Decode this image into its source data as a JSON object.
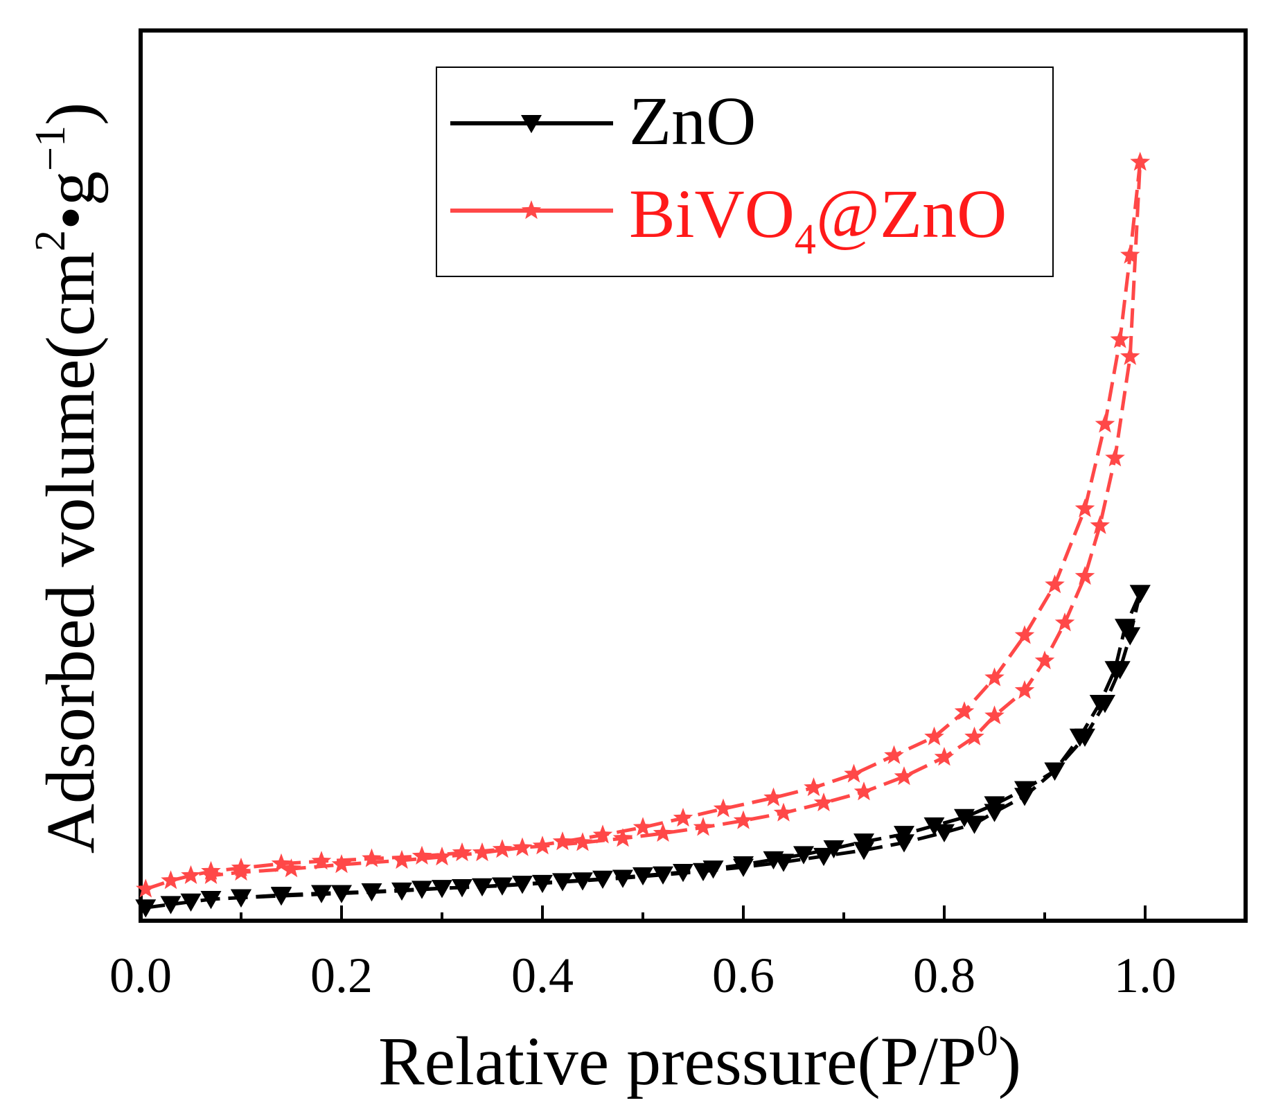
{
  "chart_data": {
    "type": "line",
    "title": "",
    "xlabel": {
      "main": "Relative pressure(P/P",
      "sup": "0",
      "tail": ")"
    },
    "ylabel": {
      "pre": "Adsorbed volume(cm",
      "sup1": "2",
      "mid": "•g",
      "sup2": "−1",
      "tail": ")"
    },
    "xlim": [
      0.0,
      1.1
    ],
    "ylim": [
      0,
      100
    ],
    "xticks": [
      0.0,
      0.2,
      0.4,
      0.6,
      0.8,
      1.0
    ],
    "xtick_labels": [
      "0.0",
      "0.2",
      "0.4",
      "0.6",
      "0.8",
      "1.0"
    ],
    "y_ticks_labeled": false,
    "grid": false,
    "legend_position": "top-right",
    "series": [
      {
        "name": "ZnO",
        "label_main": "ZnO",
        "label_sub": "",
        "label_tail": "",
        "color": "#000000",
        "marker": "triangle-down",
        "adsorption": {
          "x": [
            0.005,
            0.03,
            0.05,
            0.07,
            0.1,
            0.14,
            0.18,
            0.23,
            0.28,
            0.32,
            0.36,
            0.4,
            0.44,
            0.48,
            0.52,
            0.56,
            0.6,
            0.64,
            0.68,
            0.72,
            0.76,
            0.8,
            0.83,
            0.85,
            0.88,
            0.91,
            0.935,
            0.955,
            0.97,
            0.98,
            0.995
          ],
          "y": [
            0.8,
            1.2,
            1.5,
            1.8,
            2.0,
            2.3,
            2.5,
            2.7,
            3.0,
            3.2,
            3.4,
            3.7,
            4.0,
            4.3,
            4.7,
            5.1,
            5.6,
            6.2,
            6.9,
            7.6,
            8.5,
            9.7,
            10.7,
            12.1,
            14.0,
            17.0,
            21.0,
            25.0,
            29.0,
            34.0,
            38.0
          ]
        },
        "desorption": {
          "x": [
            0.995,
            0.985,
            0.975,
            0.96,
            0.94,
            0.91,
            0.88,
            0.85,
            0.82,
            0.79,
            0.76,
            0.72,
            0.69,
            0.66,
            0.63,
            0.6,
            0.57,
            0.54,
            0.5,
            0.46,
            0.42,
            0.38,
            0.34,
            0.3,
            0.26,
            0.2,
            0.14,
            0.1
          ],
          "y": [
            38.0,
            33.0,
            29.0,
            25.0,
            21.0,
            17.0,
            14.8,
            13.0,
            11.5,
            10.5,
            9.5,
            8.6,
            7.8,
            7.1,
            6.5,
            5.9,
            5.4,
            5.0,
            4.6,
            4.2,
            3.9,
            3.6,
            3.3,
            3.1,
            2.8,
            2.5,
            2.2,
            2.0
          ]
        }
      },
      {
        "name": "BiVO4@ZnO",
        "label_main": "BiVO",
        "label_sub": "4",
        "label_tail": "@ZnO",
        "color": "#ff4848",
        "marker": "star",
        "adsorption": {
          "x": [
            0.005,
            0.03,
            0.05,
            0.07,
            0.1,
            0.14,
            0.18,
            0.23,
            0.28,
            0.32,
            0.36,
            0.4,
            0.44,
            0.48,
            0.52,
            0.56,
            0.6,
            0.64,
            0.68,
            0.72,
            0.76,
            0.8,
            0.83,
            0.85,
            0.88,
            0.9,
            0.92,
            0.94,
            0.955,
            0.97,
            0.985,
            0.995
          ],
          "y": [
            3.0,
            4.0,
            4.6,
            5.1,
            5.5,
            6.0,
            6.3,
            6.6,
            6.9,
            7.3,
            7.7,
            8.1,
            8.5,
            9.0,
            9.6,
            10.3,
            11.1,
            12.0,
            13.2,
            14.5,
            16.3,
            18.6,
            21.0,
            23.5,
            26.5,
            30.0,
            34.5,
            40.0,
            46.0,
            54.0,
            66.0,
            89.0
          ]
        },
        "desorption": {
          "x": [
            0.995,
            0.985,
            0.975,
            0.96,
            0.94,
            0.91,
            0.88,
            0.85,
            0.82,
            0.79,
            0.75,
            0.71,
            0.67,
            0.63,
            0.58,
            0.54,
            0.5,
            0.46,
            0.42,
            0.38,
            0.34,
            0.3,
            0.26,
            0.2,
            0.15,
            0.1,
            0.07
          ],
          "y": [
            89.0,
            78.0,
            68.0,
            58.0,
            48.0,
            39.0,
            33.0,
            28.0,
            24.0,
            21.0,
            18.8,
            16.6,
            15.0,
            13.8,
            12.5,
            11.4,
            10.3,
            9.4,
            8.6,
            7.9,
            7.3,
            6.8,
            6.4,
            5.9,
            5.4,
            5.0,
            4.6
          ]
        }
      }
    ]
  }
}
